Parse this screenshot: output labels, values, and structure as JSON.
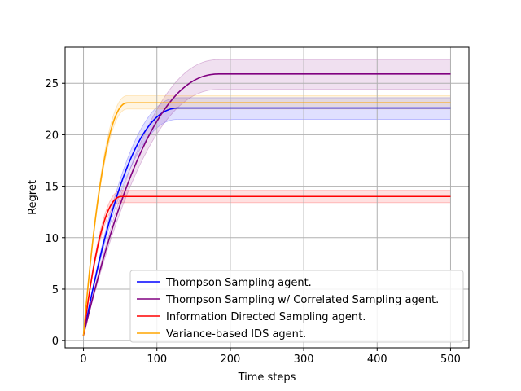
{
  "chart_data": {
    "type": "line",
    "title": "",
    "xlabel": "Time steps",
    "ylabel": "Regret",
    "xlim": [
      -25,
      525
    ],
    "ylim": [
      -0.7,
      28.5
    ],
    "xticks": [
      0,
      100,
      200,
      300,
      400,
      500
    ],
    "yticks": [
      0,
      5,
      10,
      15,
      20,
      25
    ],
    "grid": true,
    "legend_position": "lower-right",
    "x_max": 500,
    "series": [
      {
        "name": "Thompson Sampling agent.",
        "color": "#0000ff",
        "start": 0.5,
        "plateau": 22.6,
        "saturation_step": 130,
        "band_low": 21.5,
        "band_high": 23.6
      },
      {
        "name": "Thompson Sampling w/ Correlated Sampling agent.",
        "color": "#800080",
        "start": 0.5,
        "plateau": 25.9,
        "saturation_step": 185,
        "band_low": 24.4,
        "band_high": 27.3
      },
      {
        "name": "Information Directed Sampling agent.",
        "color": "#ff0000",
        "start": 0.5,
        "plateau": 14.0,
        "saturation_step": 52,
        "band_low": 13.4,
        "band_high": 14.6
      },
      {
        "name": "Variance-based IDS agent.",
        "color": "#ffa500",
        "start": 0.5,
        "plateau": 23.1,
        "saturation_step": 60,
        "band_low": 22.5,
        "band_high": 23.8
      }
    ]
  }
}
